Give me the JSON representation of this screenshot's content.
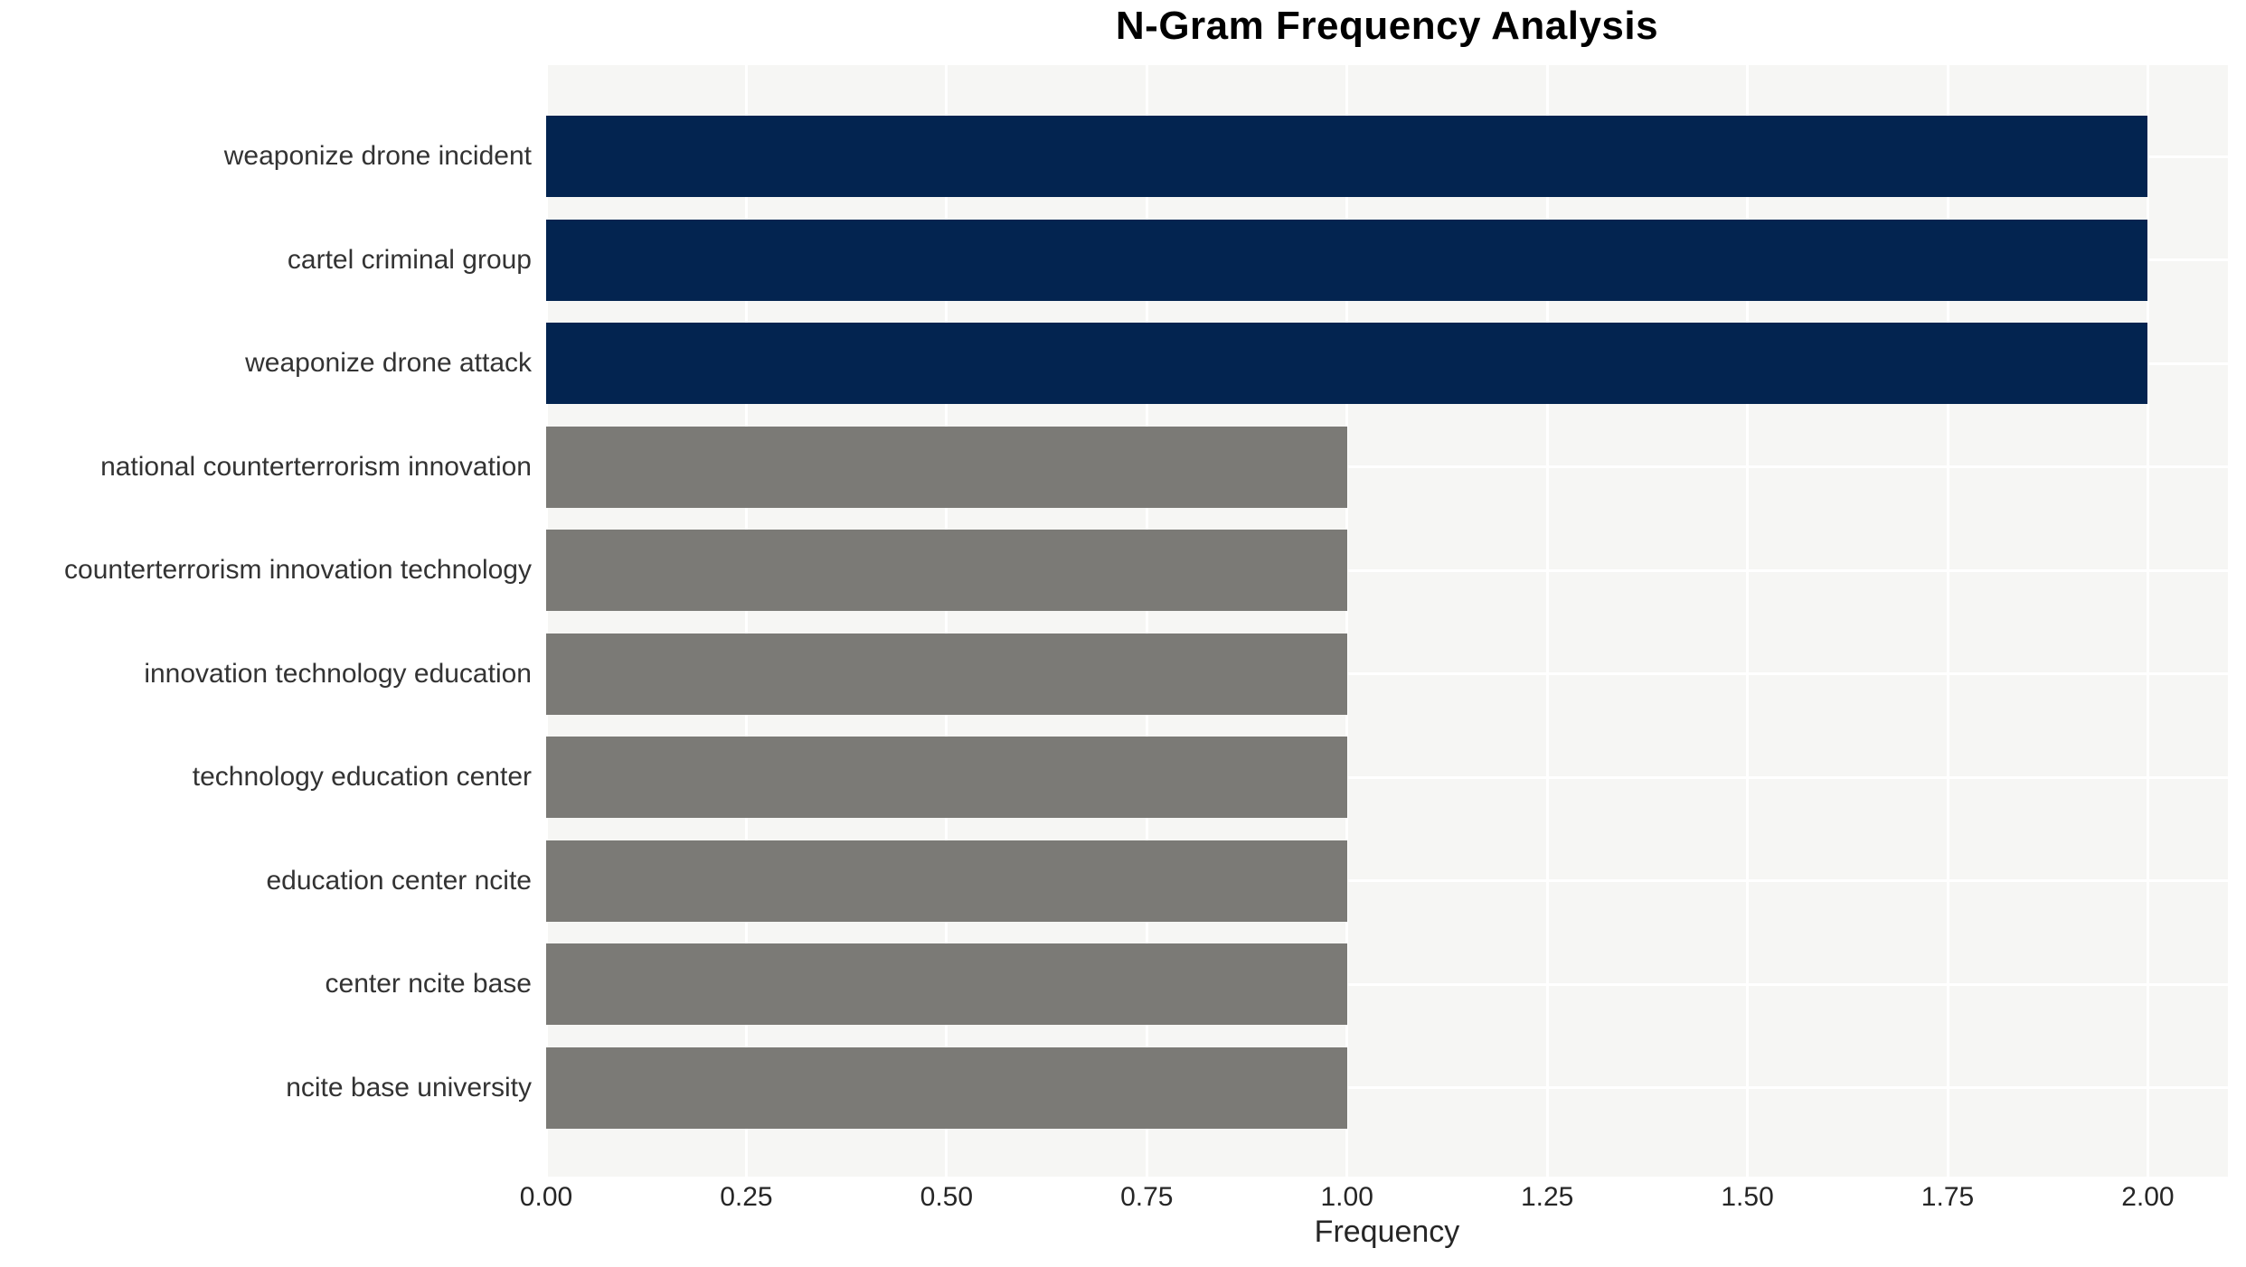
{
  "page_title": "N-Gram Frequency Analysis",
  "chart_data": {
    "type": "bar",
    "orientation": "horizontal",
    "title": "N-Gram Frequency Analysis",
    "xlabel": "Frequency",
    "ylabel": "",
    "categories": [
      "weaponize drone incident",
      "cartel criminal group",
      "weaponize drone attack",
      "national counterterrorism innovation",
      "counterterrorism innovation technology",
      "innovation technology education",
      "technology education center",
      "education center ncite",
      "center ncite base",
      "ncite base university"
    ],
    "values": [
      2,
      2,
      2,
      1,
      1,
      1,
      1,
      1,
      1,
      1
    ],
    "bar_colors": [
      "#032450",
      "#032450",
      "#032450",
      "#7b7a76",
      "#7b7a76",
      "#7b7a76",
      "#7b7a76",
      "#7b7a76",
      "#7b7a76",
      "#7b7a76"
    ],
    "xlim": [
      0,
      2.1
    ],
    "xticks": [
      0,
      0.25,
      0.5,
      0.75,
      1.0,
      1.25,
      1.5,
      1.75,
      2.0
    ],
    "xtick_labels": [
      "0.00",
      "0.25",
      "0.50",
      "0.75",
      "1.00",
      "1.25",
      "1.50",
      "1.75",
      "2.00"
    ],
    "grid": "on",
    "legend": "none",
    "colors": {
      "navy_bar": "#032450",
      "gray_bar": "#7b7a76",
      "plot_background": "#f6f6f4",
      "gridline": "#ffffff",
      "title_text": "#000000",
      "axis_text": "#262626",
      "category_text": "#333333",
      "figure_background": "#ffffff"
    }
  }
}
